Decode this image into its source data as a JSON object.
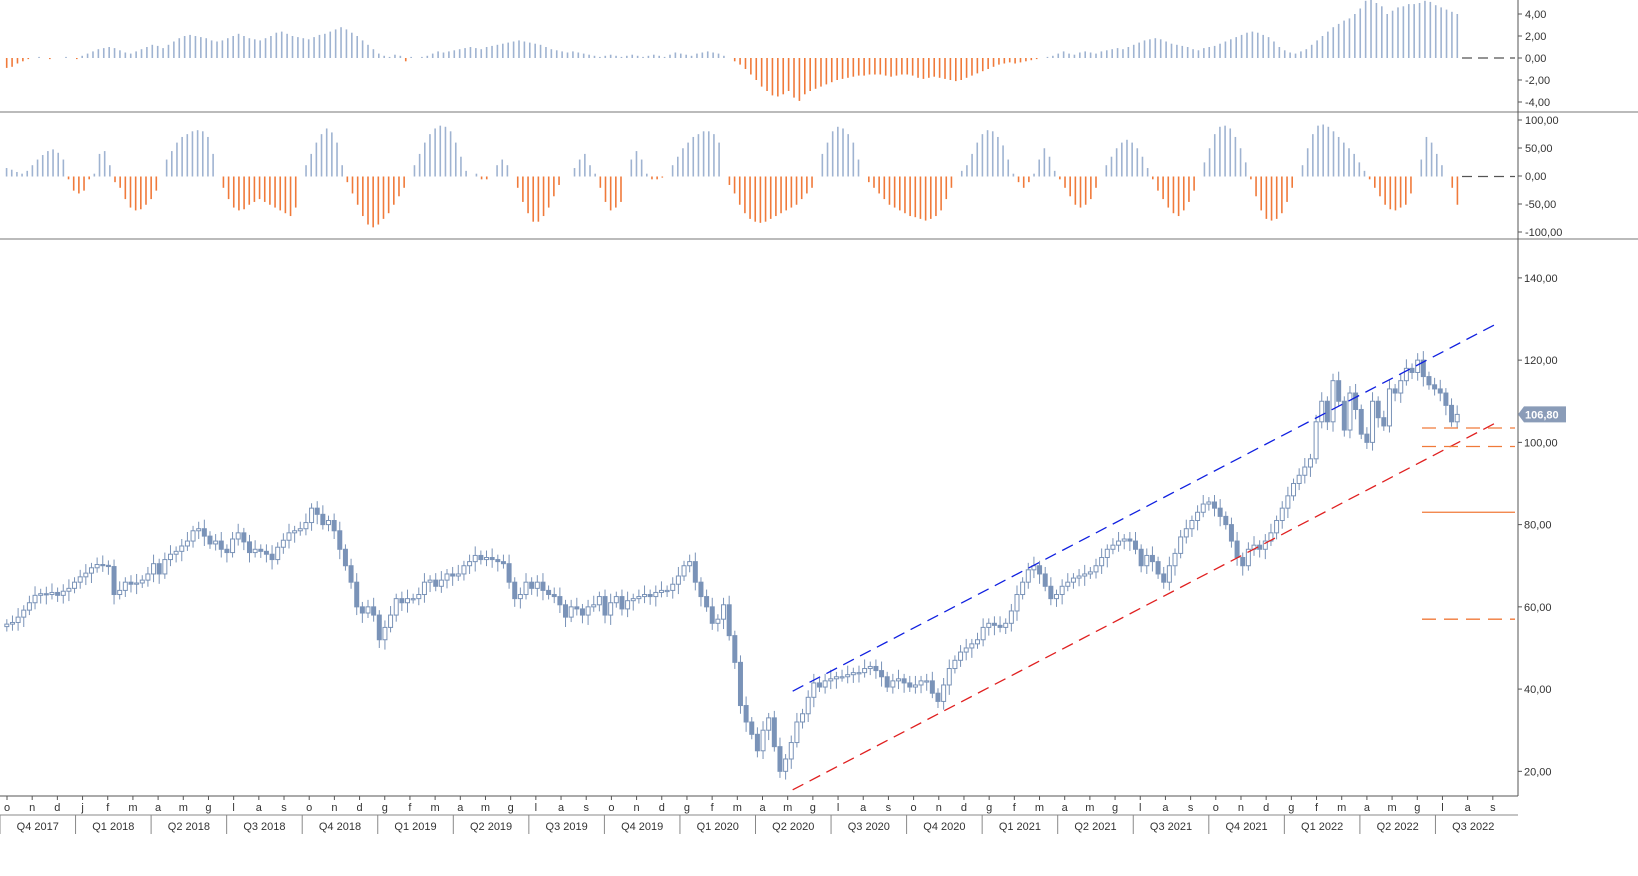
{
  "colors": {
    "candle": "#7a93b8",
    "hist_pos": "#9fb3d1",
    "hist_neg": "#f07a3a",
    "trend_upper": "#1020e0",
    "trend_lower": "#e02020",
    "level_line": "#f07a3a",
    "axis": "#333333",
    "price_badge_bg": "#8a9cb8",
    "price_badge_fg": "#ffffff"
  },
  "chart_data": [
    {
      "type": "bar",
      "panel": "top-oscillator",
      "ylim": [
        -5,
        5
      ],
      "y_ticks": [
        "4,00",
        "2,00",
        "0,00",
        "-2,00",
        "-4,00"
      ],
      "values": [
        -0.9,
        -0.8,
        -0.5,
        -0.3,
        -0.1,
        0.0,
        0.1,
        0.0,
        -0.1,
        0.0,
        0.0,
        0.1,
        0.0,
        -0.1,
        0.2,
        0.4,
        0.6,
        0.8,
        0.9,
        1.0,
        0.9,
        0.7,
        0.5,
        0.4,
        0.6,
        0.8,
        1.0,
        1.2,
        1.1,
        0.9,
        1.2,
        1.5,
        1.8,
        2.0,
        2.1,
        2.0,
        1.9,
        1.8,
        1.6,
        1.5,
        1.6,
        1.8,
        2.0,
        2.2,
        2.0,
        1.8,
        1.7,
        1.6,
        1.8,
        2.0,
        2.3,
        2.4,
        2.2,
        2.0,
        1.9,
        1.8,
        1.7,
        1.9,
        2.1,
        2.2,
        2.4,
        2.6,
        2.8,
        2.6,
        2.3,
        2.0,
        1.6,
        1.2,
        0.8,
        0.4,
        0.2,
        0.1,
        0.3,
        0.2,
        -0.3,
        0.1,
        0.0,
        0.1,
        0.2,
        0.4,
        0.6,
        0.5,
        0.6,
        0.7,
        0.8,
        0.9,
        1.0,
        0.9,
        0.8,
        1.0,
        1.1,
        1.2,
        1.3,
        1.4,
        1.5,
        1.6,
        1.5,
        1.4,
        1.3,
        1.2,
        1.0,
        0.8,
        0.7,
        0.6,
        0.5,
        0.6,
        0.5,
        0.4,
        0.3,
        0.2,
        0.1,
        0.2,
        0.3,
        0.2,
        0.1,
        0.2,
        0.3,
        0.2,
        0.1,
        0.2,
        0.3,
        0.2,
        0.1,
        0.3,
        0.5,
        0.4,
        0.3,
        0.2,
        0.4,
        0.5,
        0.6,
        0.5,
        0.4,
        0.2,
        0.0,
        -0.3,
        -0.6,
        -1.0,
        -1.5,
        -2.0,
        -2.6,
        -3.0,
        -3.4,
        -3.5,
        -3.3,
        -3.0,
        -3.6,
        -3.9,
        -3.3,
        -3.0,
        -2.8,
        -2.6,
        -2.4,
        -2.2,
        -2.0,
        -1.9,
        -1.8,
        -1.7,
        -1.6,
        -1.6,
        -1.5,
        -1.5,
        -1.5,
        -1.6,
        -1.7,
        -1.6,
        -1.5,
        -1.5,
        -1.6,
        -1.8,
        -1.9,
        -1.8,
        -1.7,
        -1.8,
        -1.9,
        -2.0,
        -2.1,
        -2.0,
        -1.8,
        -1.6,
        -1.4,
        -1.2,
        -1.0,
        -0.8,
        -0.6,
        -0.5,
        -0.4,
        -0.5,
        -0.4,
        -0.3,
        -0.2,
        -0.1,
        0.0,
        0.1,
        0.2,
        0.4,
        0.6,
        0.4,
        0.3,
        0.5,
        0.6,
        0.5,
        0.4,
        0.6,
        0.7,
        0.8,
        0.9,
        0.8,
        1.0,
        1.2,
        1.4,
        1.6,
        1.7,
        1.8,
        1.7,
        1.5,
        1.3,
        1.2,
        1.1,
        1.0,
        0.8,
        0.7,
        0.9,
        1.0,
        1.1,
        1.3,
        1.5,
        1.7,
        1.9,
        2.1,
        2.3,
        2.4,
        2.3,
        2.1,
        1.9,
        1.5,
        1.0,
        0.7,
        0.5,
        0.4,
        0.6,
        0.8,
        1.2,
        1.6,
        2.0,
        2.4,
        2.8,
        3.1,
        3.4,
        3.6,
        4.0,
        4.5,
        5.2,
        6.0,
        5.0,
        4.7,
        4.0,
        4.3,
        4.6,
        4.7,
        4.9,
        4.9,
        5.0,
        5.2,
        5.1,
        4.8,
        4.6,
        4.4,
        4.2,
        4.0
      ]
    },
    {
      "type": "bar",
      "panel": "middle-oscillator",
      "ylim": [
        -110,
        110
      ],
      "y_ticks": [
        "100,00",
        "50,00",
        "0,00",
        "-50,00",
        "-100,00"
      ],
      "values": [
        15,
        12,
        8,
        5,
        10,
        20,
        30,
        38,
        45,
        48,
        42,
        30,
        -5,
        -25,
        -30,
        -25,
        -5,
        5,
        40,
        45,
        20,
        -10,
        -20,
        -40,
        -55,
        -60,
        -58,
        -50,
        -40,
        -25,
        0,
        30,
        45,
        60,
        70,
        75,
        80,
        82,
        80,
        70,
        40,
        0,
        -20,
        -40,
        -55,
        -60,
        -58,
        -50,
        -45,
        -40,
        -45,
        -50,
        -55,
        -60,
        -65,
        -70,
        -55,
        0,
        20,
        40,
        60,
        75,
        85,
        78,
        60,
        20,
        -10,
        -30,
        -50,
        -70,
        -85,
        -90,
        -85,
        -75,
        -65,
        -50,
        -35,
        -20,
        0,
        20,
        40,
        60,
        75,
        85,
        90,
        88,
        80,
        60,
        35,
        10,
        0,
        5,
        -5,
        -5,
        0,
        20,
        30,
        20,
        0,
        -20,
        -45,
        -65,
        -80,
        -80,
        -70,
        -55,
        -35,
        -15,
        0,
        0,
        15,
        30,
        40,
        20,
        5,
        -20,
        -45,
        -60,
        -55,
        -45,
        0,
        30,
        45,
        30,
        5,
        -5,
        -5,
        -2,
        0,
        20,
        35,
        50,
        60,
        70,
        75,
        80,
        80,
        75,
        60,
        0,
        -15,
        -30,
        -50,
        -65,
        -75,
        -80,
        -82,
        -80,
        -75,
        -70,
        -65,
        -60,
        -55,
        -50,
        -40,
        -30,
        -20,
        0,
        40,
        60,
        80,
        88,
        85,
        75,
        60,
        30,
        0,
        -10,
        -20,
        -30,
        -40,
        -50,
        -55,
        -60,
        -65,
        -70,
        -72,
        -75,
        -78,
        -75,
        -70,
        -60,
        -40,
        -20,
        0,
        10,
        20,
        40,
        60,
        75,
        82,
        80,
        70,
        55,
        30,
        5,
        -10,
        -20,
        -10,
        5,
        30,
        50,
        35,
        10,
        -5,
        -20,
        -35,
        -50,
        -55,
        -50,
        -40,
        -20,
        0,
        20,
        35,
        50,
        60,
        65,
        60,
        50,
        35,
        15,
        -5,
        -25,
        -40,
        -55,
        -65,
        -70,
        -60,
        -45,
        -25,
        0,
        25,
        50,
        75,
        88,
        90,
        85,
        70,
        50,
        25,
        -5,
        -35,
        -60,
        -75,
        -78,
        -75,
        -65,
        -45,
        -20,
        0,
        20,
        50,
        75,
        90,
        92,
        88,
        80,
        70,
        60,
        50,
        40,
        25,
        10,
        -5,
        -20,
        -35,
        -50,
        -58,
        -60,
        -55,
        -50,
        -30,
        0,
        30,
        70,
        60,
        40,
        20,
        0,
        -20,
        -50
      ]
    },
    {
      "type": "candlestick",
      "panel": "price",
      "ylim": [
        14,
        148
      ],
      "y_ticks": [
        "140,00",
        "120,00",
        "100,00",
        "80,00",
        "60,00",
        "40,00",
        "20,00"
      ],
      "last_price_label": "106,80",
      "x_month_labels": [
        "o",
        "n",
        "d",
        "j",
        "f",
        "m",
        "a",
        "m",
        "g",
        "l",
        "a",
        "s",
        "o",
        "n",
        "d",
        "g",
        "f",
        "m",
        "a",
        "m",
        "g",
        "l",
        "a",
        "s",
        "o",
        "n",
        "d",
        "g",
        "f",
        "m",
        "a",
        "m",
        "g",
        "l",
        "a",
        "s",
        "o",
        "n",
        "d",
        "g",
        "f",
        "m",
        "a",
        "m",
        "g",
        "l",
        "a",
        "s",
        "o",
        "n",
        "d",
        "g",
        "f",
        "m",
        "a",
        "m",
        "g",
        "l",
        "a",
        "s"
      ],
      "x_quarter_labels": [
        "Q4 2017",
        "Q1 2018",
        "Q2 2018",
        "Q3 2018",
        "Q4 2018",
        "Q1 2019",
        "Q2 2019",
        "Q3 2019",
        "Q4 2019",
        "Q1 2020",
        "Q2 2020",
        "Q3 2020",
        "Q4 2020",
        "Q1 2021",
        "Q2 2021",
        "Q3 2021",
        "Q4 2021",
        "Q1 2022",
        "Q2 2022",
        "Q3 2022"
      ],
      "closes": [
        55.8,
        56.2,
        57.5,
        59.2,
        61.0,
        62.8,
        63.2,
        63.0,
        63.5,
        62.8,
        63.8,
        64.5,
        66.0,
        67.3,
        68.2,
        69.5,
        70.3,
        70.1,
        69.8,
        63.0,
        64.0,
        66.0,
        65.5,
        65.8,
        66.5,
        68.0,
        70.5,
        68.0,
        71.5,
        72.8,
        73.5,
        74.8,
        76.0,
        78.5,
        79.0,
        77.2,
        75.3,
        76.0,
        74.0,
        73.2,
        76.5,
        78.0,
        75.8,
        73.2,
        74.0,
        73.5,
        72.8,
        71.5,
        74.5,
        76.2,
        78.0,
        78.5,
        79.0,
        80.5,
        84.0,
        82.5,
        80.0,
        81.0,
        78.5,
        74.0,
        70.0,
        66.0,
        60.0,
        58.5,
        60.0,
        58.0,
        52.0,
        55.0,
        58.0,
        62.0,
        61.0,
        62.0,
        62.0,
        63.0,
        66.0,
        66.5,
        65.0,
        66.5,
        68.0,
        67.5,
        68.0,
        70.0,
        71.0,
        72.5,
        71.5,
        72.0,
        71.5,
        71.0,
        70.5,
        66.0,
        62.0,
        63.0,
        66.0,
        64.5,
        66.0,
        64.0,
        63.0,
        62.5,
        60.5,
        57.5,
        60.0,
        59.5,
        58.0,
        60.0,
        60.5,
        62.5,
        58.0,
        61.0,
        62.5,
        59.5,
        61.5,
        62.0,
        62.5,
        63.0,
        62.5,
        63.5,
        64.0,
        64.0,
        65.5,
        67.5,
        70.0,
        71.0,
        66.0,
        62.5,
        60.0,
        56.0,
        57.0,
        60.5,
        53.0,
        46.5,
        36.0,
        32.0,
        29.0,
        25.0,
        30.0,
        33.0,
        26.0,
        20.0,
        23.0,
        27.0,
        32.0,
        34.0,
        38.0,
        41.5,
        40.5,
        42.0,
        42.5,
        43.0,
        43.0,
        43.5,
        44.0,
        44.0,
        45.0,
        45.5,
        44.5,
        43.0,
        40.5,
        42.0,
        42.5,
        41.5,
        40.5,
        41.0,
        42.0,
        42.0,
        39.0,
        37.0,
        41.0,
        45.0,
        47.0,
        49.0,
        50.0,
        51.0,
        52.0,
        55.0,
        56.0,
        55.5,
        55.0,
        56.0,
        59.0,
        63.0,
        66.0,
        69.0,
        70.0,
        68.0,
        65.0,
        62.0,
        63.0,
        65.0,
        66.0,
        67.0,
        67.5,
        68.0,
        68.5,
        70.0,
        72.0,
        74.0,
        75.0,
        76.0,
        76.5,
        76.0,
        74.0,
        70.0,
        72.5,
        71.0,
        68.0,
        66.0,
        70.0,
        73.0,
        77.0,
        79.0,
        81.0,
        83.0,
        85.0,
        85.5,
        84.0,
        82.0,
        80.0,
        76.0,
        72.0,
        70.0,
        74.0,
        75.0,
        74.0,
        76.0,
        78.0,
        81.0,
        84.0,
        87.0,
        90.0,
        92.0,
        94.0,
        96.0,
        105.0,
        110.0,
        105.0,
        115.0,
        110.0,
        103.0,
        112.0,
        108.0,
        102.0,
        100.0,
        110.0,
        106.0,
        104.0,
        113.0,
        112.0,
        115.0,
        118.0,
        117.0,
        120.0,
        116.0,
        114.0,
        113.0,
        112.0,
        109.0,
        105.0,
        106.8
      ],
      "trendlines": [
        {
          "name": "upper-channel",
          "style": "dashed",
          "color": "blue",
          "start": {
            "date": "2020-05",
            "price": 39.5
          },
          "end": {
            "date": "2022-09",
            "price": 129.0
          }
        },
        {
          "name": "lower-channel",
          "style": "dashed",
          "color": "red",
          "start": {
            "date": "2020-05",
            "price": 15.5
          },
          "end": {
            "date": "2022-09",
            "price": 105.0
          }
        }
      ],
      "horizontal_levels": [
        {
          "price": 103.5,
          "style": "dashed"
        },
        {
          "price": 99.0,
          "style": "dashed"
        },
        {
          "price": 83.0,
          "style": "solid"
        },
        {
          "price": 57.0,
          "style": "dashed"
        }
      ]
    }
  ]
}
